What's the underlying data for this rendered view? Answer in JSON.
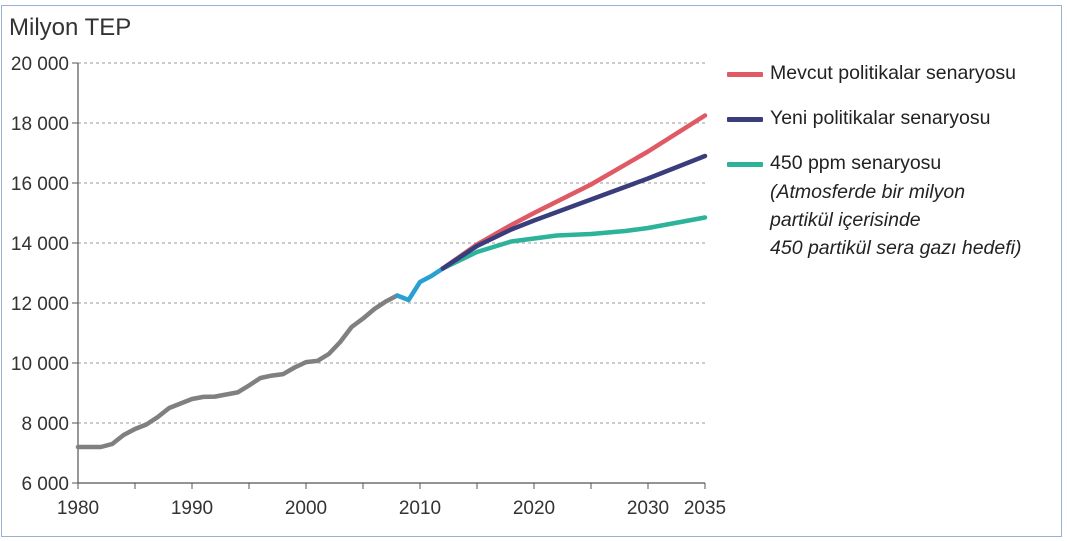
{
  "chart_data": {
    "type": "line",
    "title": "",
    "ylabel": "Milyon TEP",
    "xlabel": "",
    "xlim": [
      1980,
      2035
    ],
    "ylim": [
      6000,
      20000
    ],
    "x_ticks": [
      1980,
      1990,
      2000,
      2010,
      2020,
      2030,
      2035
    ],
    "y_ticks": [
      6000,
      8000,
      10000,
      12000,
      14000,
      16000,
      18000,
      20000
    ],
    "x_tick_labels": [
      "1980",
      "1990",
      "2000",
      "2010",
      "2020",
      "2030",
      "2035"
    ],
    "y_tick_labels": [
      "6 000",
      "8 000",
      "10 000",
      "12 000",
      "14 000",
      "16 000",
      "18 000",
      "20 000"
    ],
    "grid": "horizontal dotted",
    "legend_placement": "right",
    "series": [
      {
        "color": "#808080",
        "x": [
          1980,
          1981,
          1982,
          1983,
          1984,
          1985,
          1986,
          1987,
          1988,
          1989,
          1990,
          1991,
          1992,
          1993,
          1994,
          1995,
          1996,
          1997,
          1998,
          1999,
          2000,
          2001,
          2002,
          2003,
          2004,
          2005,
          2006,
          2007,
          2008
        ],
        "y": [
          7200,
          7200,
          7200,
          7300,
          7600,
          7800,
          7950,
          8200,
          8500,
          8650,
          8800,
          8870,
          8880,
          8950,
          9020,
          9250,
          9500,
          9580,
          9630,
          9850,
          10030,
          10070,
          10300,
          10700,
          11200,
          11480,
          11800,
          12050,
          12250
        ]
      },
      {
        "color": "#2aa0d2",
        "x": [
          2008,
          2009,
          2010,
          2011,
          2012
        ],
        "y": [
          12250,
          12100,
          12700,
          12900,
          13150
        ]
      },
      {
        "name": "Mevcut politikalar senaryosu",
        "color": "#e05a66",
        "x": [
          2012,
          2015,
          2018,
          2020,
          2025,
          2030,
          2035
        ],
        "y": [
          13150,
          13950,
          14600,
          15000,
          15950,
          17050,
          18250
        ]
      },
      {
        "name": "Yeni politikalar senaryosu",
        "color": "#3a3d7c",
        "x": [
          2012,
          2015,
          2018,
          2020,
          2025,
          2030,
          2035
        ],
        "y": [
          13150,
          13900,
          14450,
          14750,
          15450,
          16150,
          16900
        ]
      },
      {
        "name": "450 ppm senaryosu",
        "color": "#2db39a",
        "x": [
          2012,
          2015,
          2018,
          2020,
          2022,
          2025,
          2028,
          2030,
          2035
        ],
        "y": [
          13150,
          13700,
          14050,
          14150,
          14250,
          14300,
          14400,
          14500,
          14850
        ]
      }
    ],
    "annotation": [
      "(Atmosferde bir milyon",
      "partikül içerisinde",
      "450 partikül sera gazı hedefi)"
    ]
  }
}
